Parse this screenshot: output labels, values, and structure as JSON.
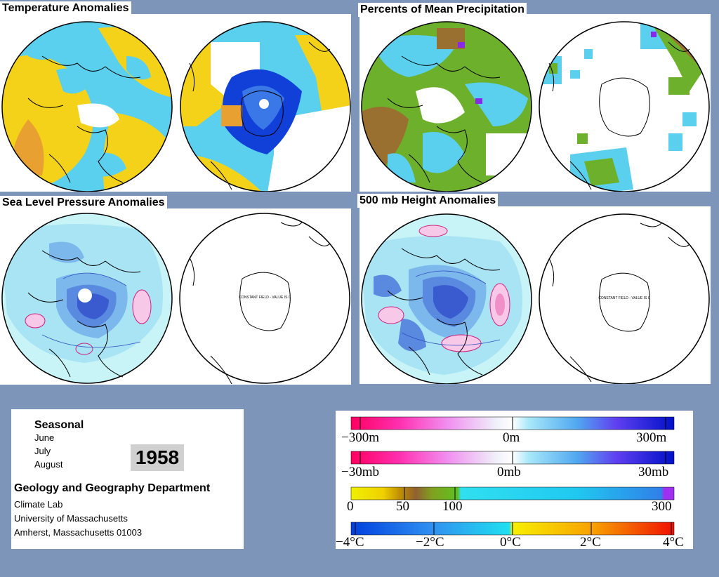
{
  "panels": {
    "temperature": {
      "title": "Temperature Anomalies"
    },
    "precipitation": {
      "title": "Percents of Mean Precipitation"
    },
    "slp": {
      "title": "Sea Level Pressure Anomalies",
      "south_note": "CONSTANT FIELD - VALUE IS 0"
    },
    "height500": {
      "title": "500 mb Height Anomalies",
      "south_note": "CONSTANT FIELD - VALUE IS 0"
    }
  },
  "info": {
    "season": "Seasonal",
    "months": [
      "June",
      "July",
      "August"
    ],
    "year": "1958",
    "department": "Geology and Geography Department",
    "lines": [
      "Climate Lab",
      "University of Massachusetts",
      "Amherst, Massachusetts 01003"
    ]
  },
  "legends": {
    "height": {
      "labels": [
        "−300m",
        "0m",
        "300m"
      ]
    },
    "pressure": {
      "labels": [
        "−30mb",
        "0mb",
        "30mb"
      ]
    },
    "precip": {
      "labels": [
        "0",
        "50",
        "100",
        "300"
      ]
    },
    "temp": {
      "labels": [
        "−4°C",
        "−2°C",
        "0°C",
        "2°C",
        "4°C"
      ]
    }
  },
  "colors": {
    "background": "#7d95b8",
    "warm": "#f5d21a",
    "cool": "#5ad0ee",
    "deep_blue": "#1040d8",
    "magenta": "#ff1a80",
    "light_cyan": "#c8f4f8",
    "green": "#6cb02c",
    "brown": "#9a7030",
    "purple": "#8a28e8"
  }
}
